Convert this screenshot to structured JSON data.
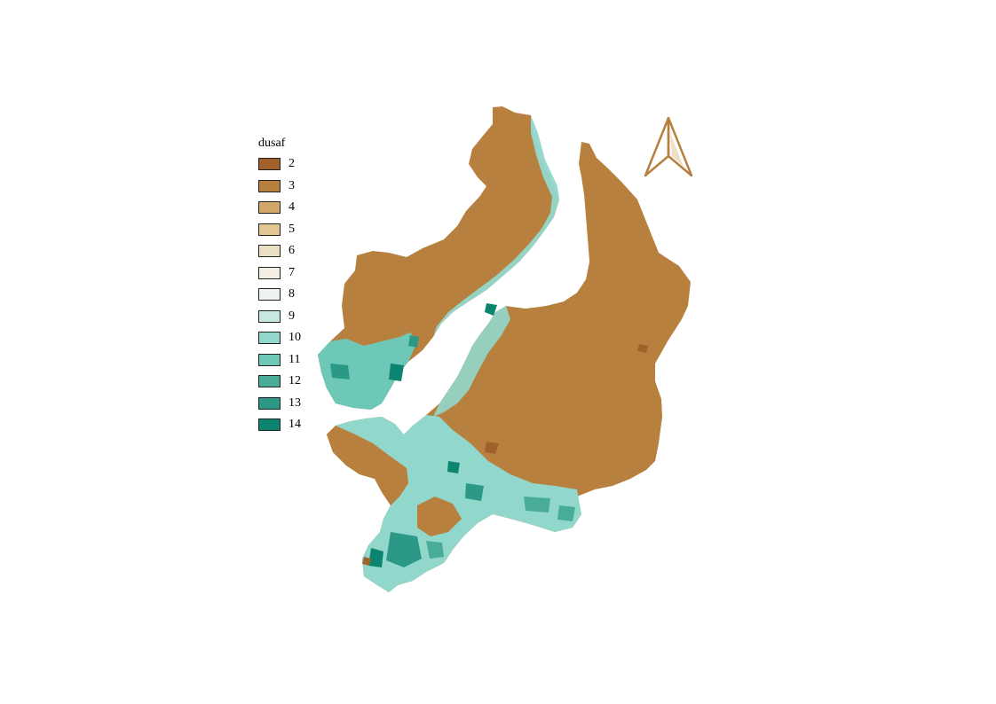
{
  "legend": {
    "title": "dusaf",
    "items": [
      {
        "label": "2",
        "color": "#A0622A"
      },
      {
        "label": "3",
        "color": "#B8803F"
      },
      {
        "label": "4",
        "color": "#D2A86A"
      },
      {
        "label": "5",
        "color": "#E3C893"
      },
      {
        "label": "6",
        "color": "#EBDFC4"
      },
      {
        "label": "7",
        "color": "#F3EDE3"
      },
      {
        "label": "8",
        "color": "#EEF3F1"
      },
      {
        "label": "9",
        "color": "#C6E8E0"
      },
      {
        "label": "10",
        "color": "#92D7CC"
      },
      {
        "label": "11",
        "color": "#6DC8B8"
      },
      {
        "label": "12",
        "color": "#48AC99"
      },
      {
        "label": "13",
        "color": "#2B9985"
      },
      {
        "label": "14",
        "color": "#0B8470"
      }
    ]
  },
  "map": {
    "terrain_color": "#B8803F",
    "urban_color": "#92D7CC",
    "dense_urban_color": "#2B9985",
    "north_arrow_icon": "north-arrow-icon"
  }
}
